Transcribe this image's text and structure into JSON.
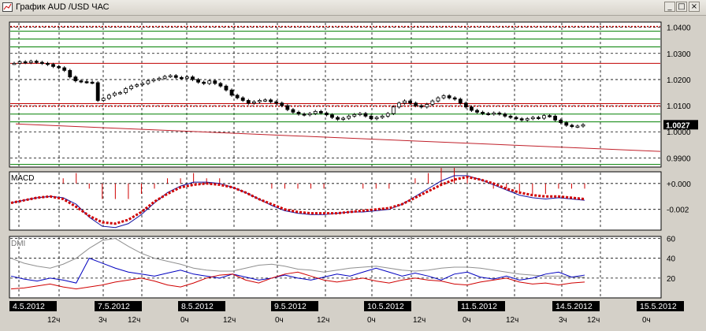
{
  "window": {
    "title": "График AUD /USD  ЧАС",
    "buttons": {
      "minimize": "_",
      "maximize": "□",
      "close": "×"
    }
  },
  "colors": {
    "background": "#ffffff",
    "frame": "#d4d0c8",
    "candle": "#000000",
    "resistance_line": "#c00000",
    "support_line": "#008000",
    "trend_line": "#c0202a",
    "macd_line": "#1010a0",
    "macd_signal": "#d00000",
    "dmi_adx": "#909090",
    "dmi_plus": "#0000c0",
    "dmi_minus": "#d00000",
    "axis_label_bg": "#000000"
  },
  "price_panel": {
    "current_price": "1.0027",
    "y_ticks": [
      "1.0400",
      "1.0300",
      "1.0200",
      "1.0100",
      "1.0000",
      "0.9900"
    ],
    "horizontal_levels": [
      {
        "value": 1.0403,
        "color": "red",
        "style": "dotted"
      },
      {
        "value": 1.0385,
        "color": "green"
      },
      {
        "value": 1.0355,
        "color": "green"
      },
      {
        "value": 1.0325,
        "color": "green"
      },
      {
        "value": 1.0262,
        "color": "red"
      },
      {
        "value": 1.0108,
        "color": "red"
      },
      {
        "value": 1.0098,
        "color": "red",
        "style": "dotted"
      },
      {
        "value": 1.0068,
        "color": "green"
      },
      {
        "value": 1.0038,
        "color": "green"
      },
      {
        "value": 0.9875,
        "color": "green"
      }
    ],
    "trend_line": {
      "from": 1.003,
      "to": 0.9925
    },
    "ylim": [
      0.9865,
      1.042
    ]
  },
  "macd_panel": {
    "label": "MACD",
    "y_ticks": [
      "+0.000",
      "-0.002"
    ],
    "ylim": [
      -0.0036,
      0.0009
    ]
  },
  "dmi_panel": {
    "label": "DMI",
    "y_ticks": [
      "60",
      "40",
      "20"
    ],
    "ylim": [
      0,
      62
    ]
  },
  "time_axis": {
    "dates": [
      "4.5.2012",
      "7.5.2012",
      "8.5.2012",
      "9.5.2012",
      "10.5.2012",
      "11.5.2012",
      "14.5.2012",
      "15.5.2012"
    ],
    "hours": [
      "12ч",
      "3ч",
      "12ч",
      "0ч",
      "12ч",
      "0ч",
      "12ч",
      "0ч",
      "12ч",
      "0ч",
      "12ч",
      "3ч",
      "12ч",
      "0ч"
    ]
  },
  "chart_data": {
    "type": "candlestick",
    "price_closes": [
      1.0262,
      1.0268,
      1.0265,
      1.027,
      1.0266,
      1.0262,
      1.0258,
      1.025,
      1.0245,
      1.0235,
      1.021,
      1.0195,
      1.0192,
      1.019,
      1.0188,
      1.012,
      1.0128,
      1.014,
      1.0148,
      1.015,
      1.0165,
      1.0175,
      1.018,
      1.0185,
      1.0195,
      1.02,
      1.0205,
      1.0212,
      1.0215,
      1.0208,
      1.0205,
      1.021,
      1.02,
      1.019,
      1.0185,
      1.0195,
      1.0185,
      1.0175,
      1.016,
      1.014,
      1.013,
      1.012,
      1.011,
      1.0115,
      1.012,
      1.0122,
      1.0115,
      1.011,
      1.01,
      1.0085,
      1.0075,
      1.0068,
      1.0065,
      1.007,
      1.0078,
      1.0072,
      1.0065,
      1.0055,
      1.0048,
      1.0052,
      1.006,
      1.0066,
      1.007,
      1.006,
      1.005,
      1.0055,
      1.006,
      1.007,
      1.0095,
      1.011,
      1.0118,
      1.011,
      1.01,
      1.0095,
      1.0105,
      1.0118,
      1.013,
      1.0138,
      1.013,
      1.0125,
      1.011,
      1.0095,
      1.0082,
      1.0075,
      1.007,
      1.0068,
      1.0072,
      1.0068,
      1.006,
      1.0055,
      1.005,
      1.0045,
      1.005,
      1.0055,
      1.0052,
      1.0062,
      1.006,
      1.0045,
      1.0035,
      1.0025,
      1.002,
      1.0022,
      1.0027
    ],
    "macd_line": [
      -0.0015,
      -0.0013,
      -0.0011,
      -0.001,
      -0.0011,
      -0.0016,
      -0.0026,
      -0.0033,
      -0.0034,
      -0.0031,
      -0.0024,
      -0.0015,
      -0.0007,
      -0.0002,
      0.0001,
      0.0001,
      0.0,
      -0.0003,
      -0.0007,
      -0.0012,
      -0.0017,
      -0.0021,
      -0.0023,
      -0.0024,
      -0.0024,
      -0.0023,
      -0.0022,
      -0.0022,
      -0.0021,
      -0.002,
      -0.0016,
      -0.001,
      -0.0004,
      0.0002,
      0.0006,
      0.0006,
      0.0003,
      -0.0001,
      -0.0005,
      -0.0009,
      -0.0011,
      -0.0012,
      -0.0011,
      -0.0012,
      -0.0013
    ],
    "macd_signal": [
      -0.0015,
      -0.0013,
      -0.0011,
      -0.001,
      -0.0012,
      -0.0018,
      -0.0025,
      -0.003,
      -0.0031,
      -0.0028,
      -0.0022,
      -0.0014,
      -0.0008,
      -0.0003,
      -0.0001,
      0.0,
      -0.0001,
      -0.0003,
      -0.0007,
      -0.0012,
      -0.0016,
      -0.002,
      -0.0022,
      -0.0023,
      -0.0023,
      -0.0023,
      -0.0022,
      -0.0021,
      -0.002,
      -0.0019,
      -0.0016,
      -0.0011,
      -0.0006,
      -0.0001,
      0.0003,
      0.0005,
      0.0003,
      0.0,
      -0.0004,
      -0.0007,
      -0.0009,
      -0.001,
      -0.001,
      -0.0011,
      -0.0012
    ],
    "dmi_adx": [
      40,
      35,
      32,
      30,
      34,
      40,
      50,
      58,
      60,
      52,
      45,
      40,
      37,
      34,
      30,
      28,
      27,
      27,
      30,
      33,
      34,
      32,
      29,
      28,
      26,
      28,
      30,
      31,
      32,
      30,
      28,
      27,
      28,
      30,
      31,
      31,
      30,
      28,
      26,
      24,
      23,
      22,
      22,
      21,
      21
    ],
    "dmi_plus": [
      22,
      19,
      17,
      20,
      18,
      15,
      40,
      35,
      30,
      26,
      24,
      22,
      25,
      28,
      24,
      22,
      20,
      24,
      21,
      18,
      20,
      23,
      20,
      18,
      21,
      24,
      22,
      26,
      30,
      26,
      22,
      25,
      22,
      18,
      24,
      26,
      21,
      19,
      22,
      18,
      20,
      24,
      26,
      21,
      23
    ],
    "dmi_minus": [
      9,
      10,
      12,
      14,
      11,
      9,
      11,
      13,
      16,
      18,
      20,
      17,
      13,
      11,
      15,
      20,
      23,
      24,
      18,
      15,
      20,
      24,
      26,
      22,
      18,
      16,
      18,
      20,
      17,
      15,
      18,
      20,
      18,
      17,
      14,
      13,
      16,
      18,
      20,
      16,
      14,
      15,
      13,
      15,
      16
    ]
  }
}
